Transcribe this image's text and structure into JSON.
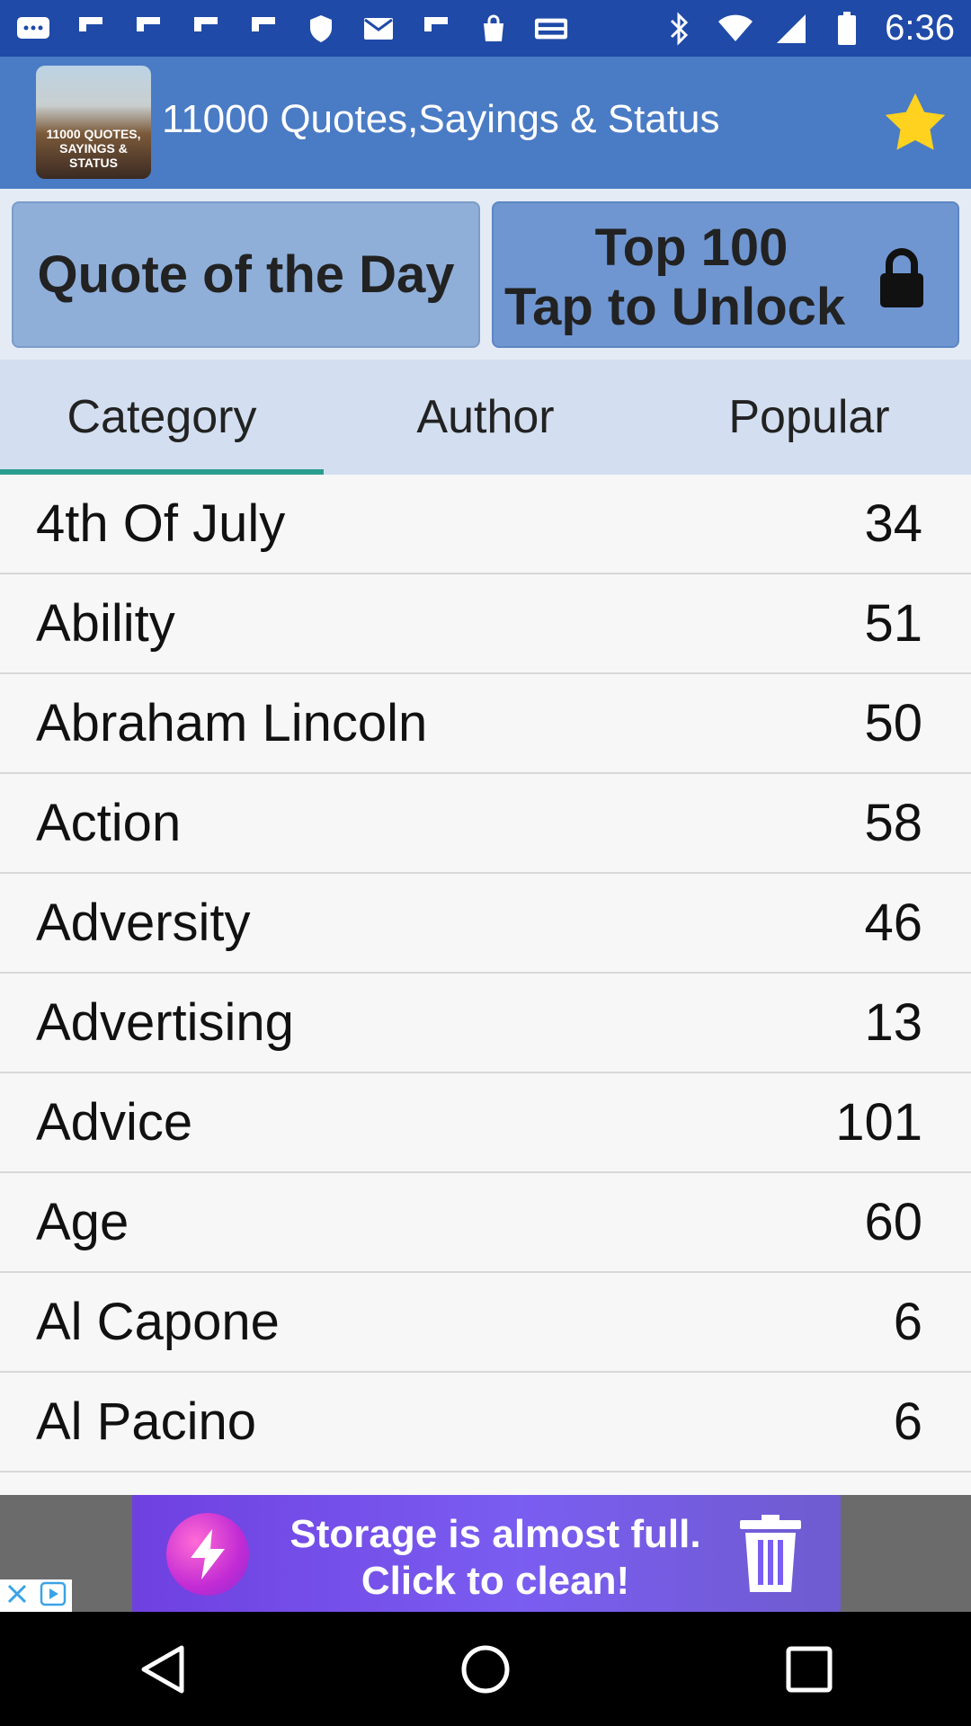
{
  "status_bar": {
    "time": "6:36",
    "icons": [
      "message-icon",
      "flipboard-icon",
      "flipboard-icon",
      "flipboard-icon",
      "flipboard-icon",
      "shield-icon",
      "mail-icon",
      "flipboard-icon",
      "shopping-bag-icon",
      "espn-dallas-icon",
      "bluetooth-icon",
      "wifi-icon",
      "signal-icon",
      "battery-icon"
    ]
  },
  "header": {
    "logo_text_line1": "11000 QUOTES,",
    "logo_text_line2": "SAYINGS & STATUS",
    "title": "11000 Quotes,Sayings & Status",
    "star_color": "#ffd21f"
  },
  "buttons": {
    "quote_of_day": "Quote of the Day",
    "top100_line1": "Top 100",
    "top100_line2": "Tap to Unlock"
  },
  "tabs": [
    {
      "label": "Category",
      "active": true
    },
    {
      "label": "Author",
      "active": false
    },
    {
      "label": "Popular",
      "active": false
    }
  ],
  "categories": [
    {
      "name": "4th Of July",
      "count": "34"
    },
    {
      "name": "Ability",
      "count": "51"
    },
    {
      "name": "Abraham Lincoln",
      "count": "50"
    },
    {
      "name": "Action",
      "count": "58"
    },
    {
      "name": "Adversity",
      "count": "46"
    },
    {
      "name": "Advertising",
      "count": "13"
    },
    {
      "name": "Advice",
      "count": "101"
    },
    {
      "name": "Age",
      "count": "60"
    },
    {
      "name": "Al Capone",
      "count": "6"
    },
    {
      "name": "Al Pacino",
      "count": "6"
    }
  ],
  "ad": {
    "line1": "Storage is almost full.",
    "line2": "Click to clean!"
  },
  "colors": {
    "status_bar": "#1f4aa8",
    "header": "#4a7bc5",
    "tab_indicator": "#2a9d8f"
  }
}
